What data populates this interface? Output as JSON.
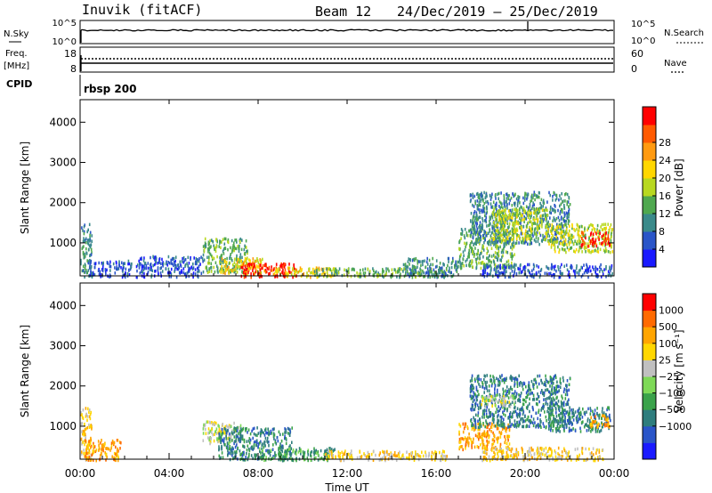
{
  "header": {
    "station": "Inuvik (fitACF)",
    "beam": "Beam 12",
    "date_range": "24/Dec/2019 – 25/Dec/2019"
  },
  "top_panels": {
    "nsky_label": "N.Sky",
    "nsky_ticks": [
      "10^5",
      "10^0"
    ],
    "nsearch_label": "N.Search",
    "nsearch_ticks": [
      "10^5",
      "10^0"
    ],
    "freq_label_1": "Freq.",
    "freq_label_2": "[MHz]",
    "freq_ticks": [
      "18",
      "8"
    ],
    "nave_label": "Nave",
    "nave_ticks": [
      "60",
      "0"
    ],
    "cpid_label": "CPID",
    "cpid_value": "rbsp 200"
  },
  "chart_data": [
    {
      "type": "heatmap",
      "name": "power",
      "ylabel": "Slant Range [km]",
      "ylim": [
        180,
        4560
      ],
      "y_ticks": [
        1000,
        2000,
        3000,
        4000
      ],
      "x_range_hours": [
        0,
        24
      ],
      "colorbar_label": "Power [dB]",
      "colorbar_ticks": [
        "4",
        "8",
        "12",
        "16",
        "20",
        "24",
        "28"
      ],
      "colorbar_colors": [
        "#1a1aff",
        "#2a55c8",
        "#3a8a8a",
        "#4fa84f",
        "#b8d820",
        "#ffd700",
        "#ff9a10",
        "#ff5a00",
        "#ff0000"
      ],
      "regions": [
        {
          "t": [
            0.0,
            0.5
          ],
          "r": [
            180,
            1500
          ],
          "level": 2
        },
        {
          "t": [
            0.4,
            2.3
          ],
          "r": [
            180,
            600
          ],
          "level": 1
        },
        {
          "t": [
            2.5,
            5.5
          ],
          "r": [
            180,
            700
          ],
          "level": 1
        },
        {
          "t": [
            5.5,
            7.5
          ],
          "r": [
            300,
            1150
          ],
          "level": 3
        },
        {
          "t": [
            6.3,
            8.3
          ],
          "r": [
            250,
            650
          ],
          "level": 5
        },
        {
          "t": [
            7.2,
            9.7
          ],
          "r": [
            180,
            520
          ],
          "level": 8
        },
        {
          "t": [
            8.5,
            11.5
          ],
          "r": [
            180,
            420
          ],
          "level": 5
        },
        {
          "t": [
            10.5,
            16.5
          ],
          "r": [
            180,
            400
          ],
          "level": 3
        },
        {
          "t": [
            14.5,
            17.0
          ],
          "r": [
            180,
            650
          ],
          "level": 2
        },
        {
          "t": [
            17.0,
            19.5
          ],
          "r": [
            400,
            1400
          ],
          "level": 3
        },
        {
          "t": [
            17.5,
            22.0
          ],
          "r": [
            1000,
            2300
          ],
          "level": 2
        },
        {
          "t": [
            18.5,
            21.0
          ],
          "r": [
            1100,
            1900
          ],
          "level": 4
        },
        {
          "t": [
            21.0,
            23.9
          ],
          "r": [
            800,
            1500
          ],
          "level": 4
        },
        {
          "t": [
            22.5,
            23.8
          ],
          "r": [
            950,
            1300
          ],
          "level": 8
        },
        {
          "t": [
            18.0,
            23.9
          ],
          "r": [
            180,
            500
          ],
          "level": 1
        }
      ]
    },
    {
      "type": "heatmap",
      "name": "velocity",
      "ylabel": "Slant Range [km]",
      "ylim": [
        180,
        4560
      ],
      "y_ticks": [
        1000,
        2000,
        3000,
        4000
      ],
      "x_range_hours": [
        0,
        24
      ],
      "colorbar_label": "Velocity [m s⁻¹]",
      "colorbar_ticks": [
        "1000",
        "500",
        "100",
        "25",
        "−25",
        "−100",
        "−500",
        "−1000"
      ],
      "colorbar_colors": [
        "#1a1aff",
        "#2a55c8",
        "#2e7d7d",
        "#3aa24a",
        "#7ed957",
        "#c0c0c0",
        "#ffd700",
        "#ffa500",
        "#ff6a00",
        "#ff0000"
      ],
      "regions": [
        {
          "t": [
            0.0,
            0.5
          ],
          "r": [
            180,
            1500
          ],
          "level": 6
        },
        {
          "t": [
            0.2,
            1.8
          ],
          "r": [
            180,
            700
          ],
          "level": 7
        },
        {
          "t": [
            5.5,
            7.2
          ],
          "r": [
            600,
            1150
          ],
          "level": 5
        },
        {
          "t": [
            6.2,
            9.5
          ],
          "r": [
            200,
            1000
          ],
          "level": 2
        },
        {
          "t": [
            8.0,
            11.5
          ],
          "r": [
            180,
            500
          ],
          "level": 3
        },
        {
          "t": [
            11.0,
            16.5
          ],
          "r": [
            180,
            420
          ],
          "level": 6
        },
        {
          "t": [
            17.0,
            19.3
          ],
          "r": [
            450,
            1100
          ],
          "level": 7
        },
        {
          "t": [
            17.5,
            22.0
          ],
          "r": [
            1000,
            2300
          ],
          "level": 2
        },
        {
          "t": [
            18.0,
            19.5
          ],
          "r": [
            1500,
            1800
          ],
          "level": 5
        },
        {
          "t": [
            21.0,
            23.8
          ],
          "r": [
            900,
            1500
          ],
          "level": 2
        },
        {
          "t": [
            22.8,
            23.8
          ],
          "r": [
            1000,
            1300
          ],
          "level": 7
        },
        {
          "t": [
            18.0,
            23.5
          ],
          "r": [
            180,
            500
          ],
          "level": 6
        }
      ]
    }
  ],
  "x_axis": {
    "tick_labels": [
      "00:00",
      "04:00",
      "08:00",
      "12:00",
      "16:00",
      "20:00",
      "00:00"
    ],
    "label": "Time UT"
  }
}
